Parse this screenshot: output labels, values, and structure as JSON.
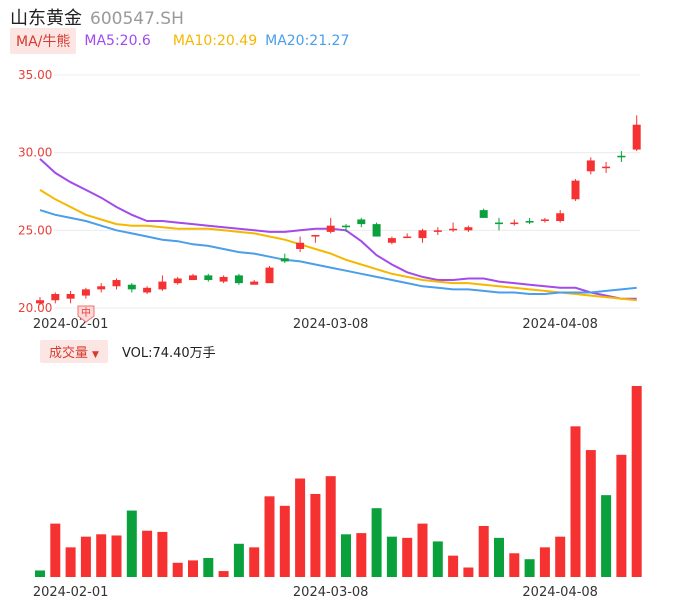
{
  "header": {
    "name": "山东黄金",
    "code": "600547.SH"
  },
  "ma_bar": {
    "button": "MA/牛熊",
    "ma5": "MA5:20.6",
    "ma10": "MA10:20.49",
    "ma20": "MA20:21.27"
  },
  "volume_bar": {
    "button": "成交量",
    "value": "VOL:74.40万手"
  },
  "badge": {
    "text": "中"
  },
  "colors": {
    "up": "#f53131",
    "down": "#0aa13c",
    "ma5": "#a24bea",
    "ma10": "#f5b800",
    "ma20": "#4a9eea",
    "axis_label": "#e8403a",
    "label_bg": "#fbe6e4"
  },
  "chart_data": [
    {
      "type": "candlestick",
      "ylim": [
        20,
        35
      ],
      "yticks": [
        "35.00",
        "30.00",
        "25.00",
        "20.00"
      ],
      "ytick_values": [
        35,
        30,
        25,
        20
      ],
      "x_tick_labels": [
        {
          "index": 2,
          "label": "2024-02-01"
        },
        {
          "index": 19,
          "label": "2024-03-08"
        },
        {
          "index": 34,
          "label": "2024-04-08"
        }
      ],
      "candles": [
        {
          "o": 20.3,
          "c": 20.5,
          "h": 20.7,
          "l": 20.2
        },
        {
          "o": 20.5,
          "c": 20.9,
          "h": 21.0,
          "l": 20.3
        },
        {
          "o": 20.6,
          "c": 20.9,
          "h": 21.1,
          "l": 20.3
        },
        {
          "o": 20.8,
          "c": 21.2,
          "h": 21.3,
          "l": 20.6
        },
        {
          "o": 21.2,
          "c": 21.4,
          "h": 21.6,
          "l": 21.0
        },
        {
          "o": 21.4,
          "c": 21.8,
          "h": 21.9,
          "l": 21.2
        },
        {
          "o": 21.5,
          "c": 21.2,
          "h": 21.6,
          "l": 21.0
        },
        {
          "o": 21.0,
          "c": 21.3,
          "h": 21.4,
          "l": 20.9
        },
        {
          "o": 21.2,
          "c": 21.7,
          "h": 22.1,
          "l": 21.1
        },
        {
          "o": 21.6,
          "c": 21.9,
          "h": 22.0,
          "l": 21.5
        },
        {
          "o": 21.8,
          "c": 22.1,
          "h": 22.2,
          "l": 21.8
        },
        {
          "o": 22.1,
          "c": 21.8,
          "h": 22.2,
          "l": 21.7
        },
        {
          "o": 21.7,
          "c": 22.0,
          "h": 22.1,
          "l": 21.6
        },
        {
          "o": 22.1,
          "c": 21.6,
          "h": 22.2,
          "l": 21.5
        },
        {
          "o": 21.5,
          "c": 21.7,
          "h": 21.8,
          "l": 21.5
        },
        {
          "o": 21.6,
          "c": 22.6,
          "h": 22.7,
          "l": 21.6
        },
        {
          "o": 23.2,
          "c": 23.0,
          "h": 23.5,
          "l": 22.9
        },
        {
          "o": 23.8,
          "c": 24.2,
          "h": 24.6,
          "l": 23.6
        },
        {
          "o": 24.6,
          "c": 24.7,
          "h": 24.7,
          "l": 24.2
        },
        {
          "o": 24.9,
          "c": 25.3,
          "h": 25.8,
          "l": 24.8
        },
        {
          "o": 25.3,
          "c": 25.2,
          "h": 25.4,
          "l": 24.9
        },
        {
          "o": 25.7,
          "c": 25.4,
          "h": 25.8,
          "l": 25.2
        },
        {
          "o": 25.4,
          "c": 24.6,
          "h": 25.5,
          "l": 24.6
        },
        {
          "o": 24.2,
          "c": 24.5,
          "h": 24.6,
          "l": 24.1
        },
        {
          "o": 24.6,
          "c": 24.6,
          "h": 24.8,
          "l": 24.5
        },
        {
          "o": 24.5,
          "c": 25.0,
          "h": 25.1,
          "l": 24.2
        },
        {
          "o": 24.9,
          "c": 25.0,
          "h": 25.2,
          "l": 24.7
        },
        {
          "o": 25.0,
          "c": 25.1,
          "h": 25.5,
          "l": 24.9
        },
        {
          "o": 25.0,
          "c": 25.2,
          "h": 25.3,
          "l": 24.9
        },
        {
          "o": 26.3,
          "c": 25.8,
          "h": 26.4,
          "l": 25.8
        },
        {
          "o": 25.5,
          "c": 25.4,
          "h": 25.8,
          "l": 25.0
        },
        {
          "o": 25.4,
          "c": 25.5,
          "h": 25.7,
          "l": 25.3
        },
        {
          "o": 25.6,
          "c": 25.5,
          "h": 25.8,
          "l": 25.4
        },
        {
          "o": 25.6,
          "c": 25.7,
          "h": 25.8,
          "l": 25.5
        },
        {
          "o": 25.6,
          "c": 26.1,
          "h": 26.3,
          "l": 25.5
        },
        {
          "o": 27.0,
          "c": 28.2,
          "h": 28.3,
          "l": 26.9
        },
        {
          "o": 28.8,
          "c": 29.5,
          "h": 29.7,
          "l": 28.6
        },
        {
          "o": 29.0,
          "c": 29.1,
          "h": 29.4,
          "l": 28.7
        },
        {
          "o": 29.8,
          "c": 29.7,
          "h": 30.1,
          "l": 29.4
        },
        {
          "o": 30.2,
          "c": 31.8,
          "h": 32.4,
          "l": 30.1
        }
      ],
      "series": [
        {
          "name": "MA5",
          "values": [
            29.6,
            28.7,
            28.1,
            27.6,
            27.1,
            26.5,
            26.0,
            25.6,
            25.6,
            25.5,
            25.4,
            25.3,
            25.2,
            25.1,
            25.0,
            24.9,
            24.9,
            25.0,
            25.1,
            25.1,
            25.0,
            24.3,
            23.4,
            22.8,
            22.3,
            22.0,
            21.8,
            21.8,
            21.9,
            21.9,
            21.7,
            21.6,
            21.5,
            21.4,
            21.3,
            21.3,
            21.0,
            20.8,
            20.6,
            20.6
          ]
        },
        {
          "name": "MA10",
          "values": [
            27.6,
            27.0,
            26.5,
            26.0,
            25.7,
            25.4,
            25.3,
            25.3,
            25.2,
            25.1,
            25.1,
            25.1,
            25.0,
            24.9,
            24.8,
            24.6,
            24.4,
            24.1,
            23.8,
            23.5,
            23.1,
            22.8,
            22.5,
            22.2,
            22.0,
            21.8,
            21.7,
            21.6,
            21.6,
            21.5,
            21.4,
            21.3,
            21.2,
            21.1,
            21.0,
            20.9,
            20.8,
            20.7,
            20.6,
            20.5
          ]
        },
        {
          "name": "MA20",
          "values": [
            26.3,
            26.0,
            25.8,
            25.6,
            25.3,
            25.0,
            24.8,
            24.6,
            24.4,
            24.3,
            24.1,
            24.0,
            23.8,
            23.6,
            23.5,
            23.3,
            23.1,
            23.0,
            22.8,
            22.6,
            22.4,
            22.2,
            22.0,
            21.8,
            21.6,
            21.4,
            21.3,
            21.2,
            21.2,
            21.1,
            21.0,
            21.0,
            20.9,
            20.9,
            21.0,
            21.0,
            21.0,
            21.1,
            21.2,
            21.3
          ]
        }
      ]
    },
    {
      "type": "bar",
      "title": "成交量",
      "x_tick_labels": [
        {
          "index": 2,
          "label": "2024-02-01"
        },
        {
          "index": 19,
          "label": "2024-03-08"
        },
        {
          "index": 34,
          "label": "2024-04-08"
        }
      ],
      "values": [
        5.5,
        45,
        25,
        34,
        36,
        35,
        56,
        39,
        38,
        12,
        14,
        16,
        5,
        28,
        25,
        68,
        60,
        83,
        70,
        85,
        36,
        37,
        58,
        34,
        33,
        45,
        30,
        18,
        8,
        43,
        33,
        20,
        15,
        25,
        34,
        127,
        107,
        69,
        103,
        161
      ],
      "directions": [
        "down",
        "up",
        "up",
        "up",
        "up",
        "up",
        "down",
        "up",
        "up",
        "up",
        "up",
        "down",
        "up",
        "down",
        "up",
        "up",
        "up",
        "up",
        "up",
        "up",
        "down",
        "up",
        "down",
        "down",
        "up",
        "up",
        "down",
        "up",
        "up",
        "up",
        "down",
        "up",
        "down",
        "up",
        "up",
        "up",
        "up",
        "down",
        "up",
        "up"
      ]
    }
  ]
}
